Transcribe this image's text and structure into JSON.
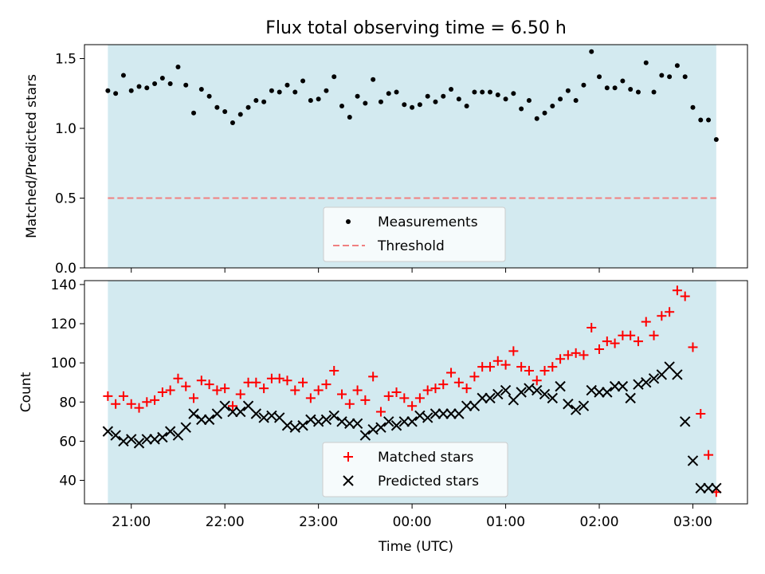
{
  "chart_data": [
    {
      "type": "scatter",
      "title": "Flux total observing time = 6.50 h",
      "ylabel": "Matched/Predicted stars",
      "xlabel": "",
      "ylim": [
        0.0,
        1.6
      ],
      "yticks": [
        0.0,
        0.5,
        1.0,
        1.5
      ],
      "ytick_labels": [
        "0.0",
        "0.5",
        "1.0",
        "1.5"
      ],
      "xlim": [
        "20:30",
        "03:35"
      ],
      "xticks": [
        "21:00",
        "22:00",
        "23:00",
        "00:00",
        "01:00",
        "02:00",
        "03:00"
      ],
      "shaded_span": [
        "20:45",
        "03:15"
      ],
      "shaded_color": "#d3eaf0",
      "grid": false,
      "legend_placement": "lower center",
      "legend": [
        "Measurements",
        "Threshold"
      ],
      "threshold": {
        "name": "Threshold",
        "value": 0.5,
        "color": "#f08080",
        "style": "dashed"
      },
      "series": [
        {
          "name": "Measurements",
          "marker": "dot",
          "color": "#000000",
          "x": [
            "20:45",
            "20:50",
            "20:55",
            "21:00",
            "21:05",
            "21:10",
            "21:15",
            "21:20",
            "21:25",
            "21:30",
            "21:35",
            "21:40",
            "21:45",
            "21:50",
            "21:55",
            "22:00",
            "22:05",
            "22:10",
            "22:15",
            "22:20",
            "22:25",
            "22:30",
            "22:35",
            "22:40",
            "22:45",
            "22:50",
            "22:55",
            "23:00",
            "23:05",
            "23:10",
            "23:15",
            "23:20",
            "23:25",
            "23:30",
            "23:35",
            "23:40",
            "23:45",
            "23:50",
            "23:55",
            "00:00",
            "00:05",
            "00:10",
            "00:15",
            "00:20",
            "00:25",
            "00:30",
            "00:35",
            "00:40",
            "00:45",
            "00:50",
            "00:55",
            "01:00",
            "01:05",
            "01:10",
            "01:15",
            "01:20",
            "01:25",
            "01:30",
            "01:35",
            "01:40",
            "01:45",
            "01:50",
            "01:55",
            "02:00",
            "02:05",
            "02:10",
            "02:15",
            "02:20",
            "02:25",
            "02:30",
            "02:35",
            "02:40",
            "02:45",
            "02:50",
            "02:55",
            "03:00",
            "03:05",
            "03:10",
            "03:15"
          ],
          "y": [
            1.27,
            1.25,
            1.38,
            1.27,
            1.3,
            1.29,
            1.32,
            1.36,
            1.32,
            1.44,
            1.31,
            1.11,
            1.28,
            1.23,
            1.15,
            1.12,
            1.04,
            1.1,
            1.15,
            1.2,
            1.19,
            1.27,
            1.26,
            1.31,
            1.26,
            1.34,
            1.2,
            1.21,
            1.27,
            1.37,
            1.16,
            1.08,
            1.23,
            1.18,
            1.35,
            1.19,
            1.25,
            1.26,
            1.17,
            1.15,
            1.17,
            1.23,
            1.19,
            1.23,
            1.28,
            1.21,
            1.16,
            1.26,
            1.26,
            1.26,
            1.24,
            1.21,
            1.25,
            1.14,
            1.2,
            1.07,
            1.11,
            1.16,
            1.21,
            1.27,
            1.2,
            1.31,
            1.55,
            1.37,
            1.29,
            1.29,
            1.34,
            1.28,
            1.26,
            1.47,
            1.26,
            1.38,
            1.37,
            1.45,
            1.37,
            1.15,
            1.06,
            1.06,
            0.92
          ]
        }
      ]
    },
    {
      "type": "scatter",
      "title": "",
      "ylabel": "Count",
      "xlabel": "Time (UTC)",
      "ylim": [
        28,
        142
      ],
      "yticks": [
        40,
        60,
        80,
        100,
        120,
        140
      ],
      "ytick_labels": [
        "40",
        "60",
        "80",
        "100",
        "120",
        "140"
      ],
      "xlim": [
        "20:30",
        "03:35"
      ],
      "xticks": [
        "21:00",
        "22:00",
        "23:00",
        "00:00",
        "01:00",
        "02:00",
        "03:00"
      ],
      "xtick_labels": [
        "21:00",
        "22:00",
        "23:00",
        "00:00",
        "01:00",
        "02:00",
        "03:00"
      ],
      "shaded_span": [
        "20:45",
        "03:15"
      ],
      "shaded_color": "#d3eaf0",
      "grid": false,
      "legend_placement": "lower center",
      "legend": [
        "Matched stars",
        "Predicted stars"
      ],
      "series": [
        {
          "name": "Matched stars",
          "marker": "plus",
          "color": "#ff0000",
          "x": [
            "20:45",
            "20:50",
            "20:55",
            "21:00",
            "21:05",
            "21:10",
            "21:15",
            "21:20",
            "21:25",
            "21:30",
            "21:35",
            "21:40",
            "21:45",
            "21:50",
            "21:55",
            "22:00",
            "22:05",
            "22:10",
            "22:15",
            "22:20",
            "22:25",
            "22:30",
            "22:35",
            "22:40",
            "22:45",
            "22:50",
            "22:55",
            "23:00",
            "23:05",
            "23:10",
            "23:15",
            "23:20",
            "23:25",
            "23:30",
            "23:35",
            "23:40",
            "23:45",
            "23:50",
            "23:55",
            "00:00",
            "00:05",
            "00:10",
            "00:15",
            "00:20",
            "00:25",
            "00:30",
            "00:35",
            "00:40",
            "00:45",
            "00:50",
            "00:55",
            "01:00",
            "01:05",
            "01:10",
            "01:15",
            "01:20",
            "01:25",
            "01:30",
            "01:35",
            "01:40",
            "01:45",
            "01:50",
            "01:55",
            "02:00",
            "02:05",
            "02:10",
            "02:15",
            "02:20",
            "02:25",
            "02:30",
            "02:35",
            "02:40",
            "02:45",
            "02:50",
            "02:55",
            "03:00",
            "03:05",
            "03:10",
            "03:15"
          ],
          "y": [
            83,
            79,
            83,
            79,
            77,
            80,
            81,
            85,
            86,
            92,
            88,
            82,
            91,
            89,
            86,
            87,
            78,
            84,
            90,
            90,
            87,
            92,
            92,
            91,
            86,
            90,
            82,
            86,
            89,
            96,
            84,
            79,
            86,
            81,
            93,
            75,
            83,
            85,
            82,
            78,
            82,
            86,
            87,
            89,
            95,
            90,
            87,
            93,
            98,
            98,
            101,
            99,
            106,
            98,
            96,
            91,
            96,
            98,
            102,
            104,
            105,
            104,
            118,
            107,
            111,
            110,
            114,
            114,
            111,
            121,
            114,
            124,
            126,
            137,
            134,
            108,
            74,
            53,
            34
          ]
        },
        {
          "name": "Predicted stars",
          "marker": "x",
          "color": "#000000",
          "x": [
            "20:45",
            "20:50",
            "20:55",
            "21:00",
            "21:05",
            "21:10",
            "21:15",
            "21:20",
            "21:25",
            "21:30",
            "21:35",
            "21:40",
            "21:45",
            "21:50",
            "21:55",
            "22:00",
            "22:05",
            "22:10",
            "22:15",
            "22:20",
            "22:25",
            "22:30",
            "22:35",
            "22:40",
            "22:45",
            "22:50",
            "22:55",
            "23:00",
            "23:05",
            "23:10",
            "23:15",
            "23:20",
            "23:25",
            "23:30",
            "23:35",
            "23:40",
            "23:45",
            "23:50",
            "23:55",
            "00:00",
            "00:05",
            "00:10",
            "00:15",
            "00:20",
            "00:25",
            "00:30",
            "00:35",
            "00:40",
            "00:45",
            "00:50",
            "00:55",
            "01:00",
            "01:05",
            "01:10",
            "01:15",
            "01:20",
            "01:25",
            "01:30",
            "01:35",
            "01:40",
            "01:45",
            "01:50",
            "01:55",
            "02:00",
            "02:05",
            "02:10",
            "02:15",
            "02:20",
            "02:25",
            "02:30",
            "02:35",
            "02:40",
            "02:45",
            "02:50",
            "02:55",
            "03:00",
            "03:05",
            "03:10",
            "03:15"
          ],
          "y": [
            65,
            63,
            60,
            61,
            59,
            61,
            61,
            62,
            65,
            63,
            67,
            74,
            71,
            71,
            74,
            78,
            75,
            75,
            78,
            74,
            72,
            73,
            72,
            68,
            67,
            68,
            71,
            70,
            71,
            73,
            70,
            69,
            69,
            63,
            66,
            67,
            70,
            68,
            70,
            70,
            73,
            72,
            74,
            74,
            74,
            74,
            78,
            78,
            82,
            82,
            84,
            86,
            81,
            85,
            87,
            86,
            84,
            82,
            88,
            79,
            76,
            78,
            86,
            85,
            85,
            88,
            88,
            82,
            89,
            90,
            92,
            94,
            98,
            94,
            70,
            50,
            36,
            36,
            36
          ]
        }
      ]
    }
  ]
}
